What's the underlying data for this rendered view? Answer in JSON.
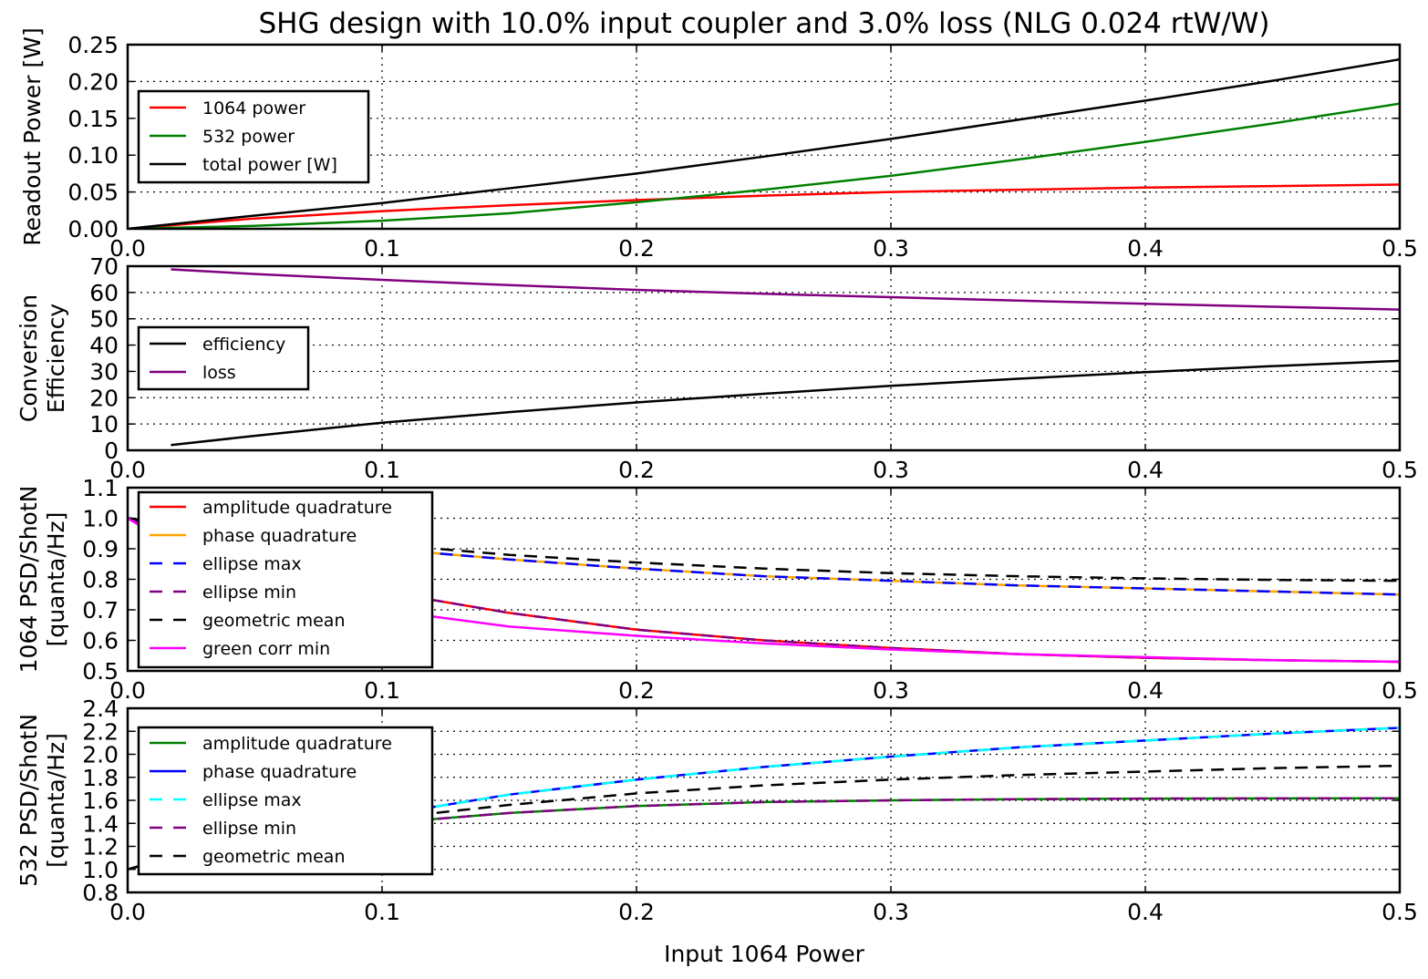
{
  "figure": {
    "title": "SHG design with 10.0% input coupler and 3.0% loss (NLG 0.024 rtW/W)",
    "xlabel": "Input 1064 Power"
  },
  "colors": {
    "red": "#ff0000",
    "green": "#008000",
    "black": "#000000",
    "purple": "#800080",
    "orange": "#ffa500",
    "blue": "#0000ff",
    "magenta": "#ff00ff",
    "cyan": "#00ffff"
  },
  "chart_data": [
    {
      "type": "line",
      "ylabel": [
        "Readout Power [W]"
      ],
      "xlim": [
        0,
        0.5
      ],
      "ylim": [
        0,
        0.25
      ],
      "xticks": [
        0.0,
        0.1,
        0.2,
        0.3,
        0.4,
        0.5
      ],
      "xtick_labels": [
        "0.0",
        "0.1",
        "0.2",
        "0.3",
        "0.4",
        "0.5"
      ],
      "yticks": [
        0.0,
        0.05,
        0.1,
        0.15,
        0.2,
        0.25
      ],
      "ytick_labels": [
        "0.00",
        "0.05",
        "0.10",
        "0.15",
        "0.20",
        "0.25"
      ],
      "grid": true,
      "legend_position": "upper-left",
      "series": [
        {
          "name": "1064 power",
          "color": "#ff0000",
          "dash": "solid",
          "x": [
            0,
            0.05,
            0.1,
            0.15,
            0.2,
            0.25,
            0.3,
            0.35,
            0.4,
            0.45,
            0.5
          ],
          "y": [
            0,
            0.014,
            0.024,
            0.032,
            0.039,
            0.045,
            0.05,
            0.053,
            0.056,
            0.058,
            0.06
          ]
        },
        {
          "name": "532 power",
          "color": "#008000",
          "dash": "solid",
          "x": [
            0,
            0.05,
            0.1,
            0.15,
            0.2,
            0.25,
            0.3,
            0.35,
            0.4,
            0.45,
            0.5
          ],
          "y": [
            0,
            0.004,
            0.011,
            0.021,
            0.036,
            0.053,
            0.072,
            0.094,
            0.118,
            0.143,
            0.17
          ]
        },
        {
          "name": "total power [W]",
          "color": "#000000",
          "dash": "solid",
          "x": [
            0,
            0.05,
            0.1,
            0.15,
            0.2,
            0.25,
            0.3,
            0.35,
            0.4,
            0.45,
            0.5
          ],
          "y": [
            0,
            0.018,
            0.035,
            0.055,
            0.075,
            0.098,
            0.122,
            0.148,
            0.174,
            0.201,
            0.23
          ]
        }
      ]
    },
    {
      "type": "line",
      "ylabel": [
        "Conversion",
        "Efficiency"
      ],
      "xlim": [
        0,
        0.5
      ],
      "ylim": [
        0,
        70
      ],
      "xticks": [
        0.0,
        0.1,
        0.2,
        0.3,
        0.4,
        0.5
      ],
      "xtick_labels": [
        "0.0",
        "0.1",
        "0.2",
        "0.3",
        "0.4",
        "0.5"
      ],
      "yticks": [
        0,
        10,
        20,
        30,
        40,
        50,
        60,
        70
      ],
      "ytick_labels": [
        "0",
        "10",
        "20",
        "30",
        "40",
        "50",
        "60",
        "70"
      ],
      "grid": true,
      "legend_position": "center-left",
      "series": [
        {
          "name": "efficiency",
          "color": "#000000",
          "dash": "solid",
          "x": [
            0.017,
            0.05,
            0.1,
            0.15,
            0.2,
            0.25,
            0.3,
            0.35,
            0.4,
            0.45,
            0.5
          ],
          "y": [
            2.0,
            5.5,
            10.5,
            14.5,
            18.2,
            21.5,
            24.5,
            27.2,
            29.7,
            32.0,
            34.0
          ]
        },
        {
          "name": "loss",
          "color": "#800080",
          "dash": "solid",
          "x": [
            0.017,
            0.05,
            0.1,
            0.15,
            0.2,
            0.25,
            0.3,
            0.35,
            0.4,
            0.45,
            0.5
          ],
          "y": [
            68.8,
            67.0,
            64.8,
            62.8,
            61.0,
            59.5,
            58.2,
            56.9,
            55.7,
            54.6,
            53.5
          ]
        }
      ]
    },
    {
      "type": "line",
      "ylabel": [
        "1064 PSD/ShotN",
        "[quanta/Hz]"
      ],
      "xlim": [
        0,
        0.5
      ],
      "ylim": [
        0.5,
        1.1
      ],
      "xticks": [
        0.0,
        0.1,
        0.2,
        0.3,
        0.4,
        0.5
      ],
      "xtick_labels": [
        "0.0",
        "0.1",
        "0.2",
        "0.3",
        "0.4",
        "0.5"
      ],
      "yticks": [
        0.5,
        0.6,
        0.7,
        0.8,
        0.9,
        1.0,
        1.1
      ],
      "ytick_labels": [
        "0.5",
        "0.6",
        "0.7",
        "0.8",
        "0.9",
        "1.0",
        "1.1"
      ],
      "grid": true,
      "legend_position": "upper-left",
      "series": [
        {
          "name": "amplitude quadrature",
          "color": "#ff0000",
          "dash": "solid",
          "x": [
            0,
            0.02,
            0.05,
            0.1,
            0.15,
            0.2,
            0.25,
            0.3,
            0.35,
            0.4,
            0.45,
            0.5
          ],
          "y": [
            1.0,
            0.93,
            0.85,
            0.76,
            0.69,
            0.635,
            0.6,
            0.575,
            0.555,
            0.543,
            0.535,
            0.53
          ]
        },
        {
          "name": "phase quadrature",
          "color": "#ffa500",
          "dash": "solid",
          "x": [
            0,
            0.02,
            0.05,
            0.1,
            0.15,
            0.2,
            0.25,
            0.3,
            0.35,
            0.4,
            0.45,
            0.5
          ],
          "y": [
            1.0,
            0.97,
            0.94,
            0.9,
            0.865,
            0.835,
            0.81,
            0.795,
            0.78,
            0.77,
            0.76,
            0.75
          ]
        },
        {
          "name": "ellipse max",
          "color": "#0000ff",
          "dash": "dashed",
          "x": [
            0,
            0.02,
            0.05,
            0.1,
            0.15,
            0.2,
            0.25,
            0.3,
            0.35,
            0.4,
            0.45,
            0.5
          ],
          "y": [
            1.0,
            0.97,
            0.94,
            0.9,
            0.865,
            0.835,
            0.81,
            0.795,
            0.78,
            0.77,
            0.76,
            0.75
          ]
        },
        {
          "name": "ellipse min",
          "color": "#800080",
          "dash": "dashed",
          "x": [
            0,
            0.02,
            0.05,
            0.1,
            0.15,
            0.2,
            0.25,
            0.3,
            0.35,
            0.4,
            0.45,
            0.5
          ],
          "y": [
            1.0,
            0.93,
            0.85,
            0.76,
            0.69,
            0.635,
            0.6,
            0.575,
            0.555,
            0.543,
            0.535,
            0.53
          ]
        },
        {
          "name": "geometric mean",
          "color": "#000000",
          "dash": "dashed",
          "x": [
            0,
            0.02,
            0.05,
            0.1,
            0.15,
            0.2,
            0.25,
            0.3,
            0.35,
            0.4,
            0.45,
            0.5
          ],
          "y": [
            1.0,
            0.98,
            0.95,
            0.915,
            0.88,
            0.855,
            0.835,
            0.82,
            0.81,
            0.803,
            0.798,
            0.795
          ]
        },
        {
          "name": "green corr min",
          "color": "#ff00ff",
          "dash": "solid",
          "x": [
            0,
            0.02,
            0.05,
            0.1,
            0.15,
            0.2,
            0.25,
            0.3,
            0.35,
            0.4,
            0.45,
            0.5
          ],
          "y": [
            1.0,
            0.9,
            0.8,
            0.7,
            0.645,
            0.615,
            0.59,
            0.57,
            0.555,
            0.545,
            0.535,
            0.53
          ]
        }
      ]
    },
    {
      "type": "line",
      "ylabel": [
        "532  PSD/ShotN",
        "[quanta/Hz]"
      ],
      "xlim": [
        0,
        0.5
      ],
      "ylim": [
        0.8,
        2.4
      ],
      "xticks": [
        0.0,
        0.1,
        0.2,
        0.3,
        0.4,
        0.5
      ],
      "xtick_labels": [
        "0.0",
        "0.1",
        "0.2",
        "0.3",
        "0.4",
        "0.5"
      ],
      "yticks": [
        0.8,
        1.0,
        1.2,
        1.4,
        1.6,
        1.8,
        2.0,
        2.2,
        2.4
      ],
      "ytick_labels": [
        "0.8",
        "1.0",
        "1.2",
        "1.4",
        "1.6",
        "1.8",
        "2.0",
        "2.2",
        "2.4"
      ],
      "grid": true,
      "legend_position": "center-left",
      "series": [
        {
          "name": "amplitude quadrature",
          "color": "#008000",
          "dash": "solid",
          "x": [
            0,
            0.02,
            0.05,
            0.1,
            0.15,
            0.2,
            0.25,
            0.3,
            0.35,
            0.4,
            0.45,
            0.5
          ],
          "y": [
            1.0,
            1.12,
            1.25,
            1.4,
            1.49,
            1.55,
            1.585,
            1.6,
            1.61,
            1.615,
            1.617,
            1.618
          ]
        },
        {
          "name": "phase quadrature",
          "color": "#0000ff",
          "dash": "solid",
          "x": [
            0,
            0.02,
            0.05,
            0.1,
            0.15,
            0.2,
            0.25,
            0.3,
            0.35,
            0.4,
            0.45,
            0.5
          ],
          "y": [
            1.0,
            1.13,
            1.28,
            1.47,
            1.65,
            1.78,
            1.89,
            1.98,
            2.06,
            2.12,
            2.18,
            2.23
          ]
        },
        {
          "name": "ellipse max",
          "color": "#00ffff",
          "dash": "dashed",
          "x": [
            0,
            0.02,
            0.05,
            0.1,
            0.15,
            0.2,
            0.25,
            0.3,
            0.35,
            0.4,
            0.45,
            0.5
          ],
          "y": [
            1.0,
            1.13,
            1.28,
            1.47,
            1.65,
            1.78,
            1.89,
            1.98,
            2.06,
            2.12,
            2.18,
            2.23
          ]
        },
        {
          "name": "ellipse min",
          "color": "#800080",
          "dash": "dashed",
          "x": [
            0,
            0.02,
            0.05,
            0.1,
            0.15,
            0.2,
            0.25,
            0.3,
            0.35,
            0.4,
            0.45,
            0.5
          ],
          "y": [
            1.0,
            1.12,
            1.25,
            1.4,
            1.49,
            1.55,
            1.585,
            1.6,
            1.61,
            1.615,
            1.617,
            1.618
          ]
        },
        {
          "name": "geometric mean",
          "color": "#000000",
          "dash": "dashed",
          "x": [
            0,
            0.02,
            0.05,
            0.1,
            0.15,
            0.2,
            0.25,
            0.3,
            0.35,
            0.4,
            0.45,
            0.5
          ],
          "y": [
            1.0,
            1.13,
            1.27,
            1.44,
            1.56,
            1.66,
            1.73,
            1.78,
            1.82,
            1.85,
            1.88,
            1.9
          ]
        }
      ]
    }
  ]
}
